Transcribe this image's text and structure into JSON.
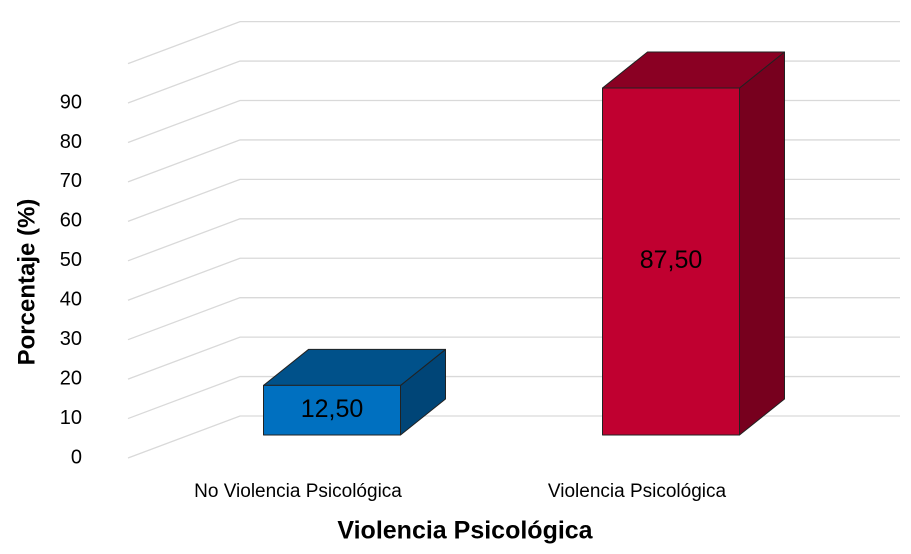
{
  "chart_data": {
    "type": "bar3d",
    "categories": [
      "No Violencia Psicológica",
      "Violencia Psicológica"
    ],
    "values": [
      12.5,
      87.5
    ],
    "value_labels": [
      "12,50",
      "87,50"
    ],
    "colors": [
      "#0070c0",
      "#c00030"
    ],
    "xlabel": "Violencia Psicológica",
    "ylabel": "Porcentaje (%)",
    "ylim": [
      0,
      100
    ],
    "yticks": [
      0,
      10,
      20,
      30,
      40,
      50,
      60,
      70,
      80,
      90
    ],
    "grid": true
  }
}
